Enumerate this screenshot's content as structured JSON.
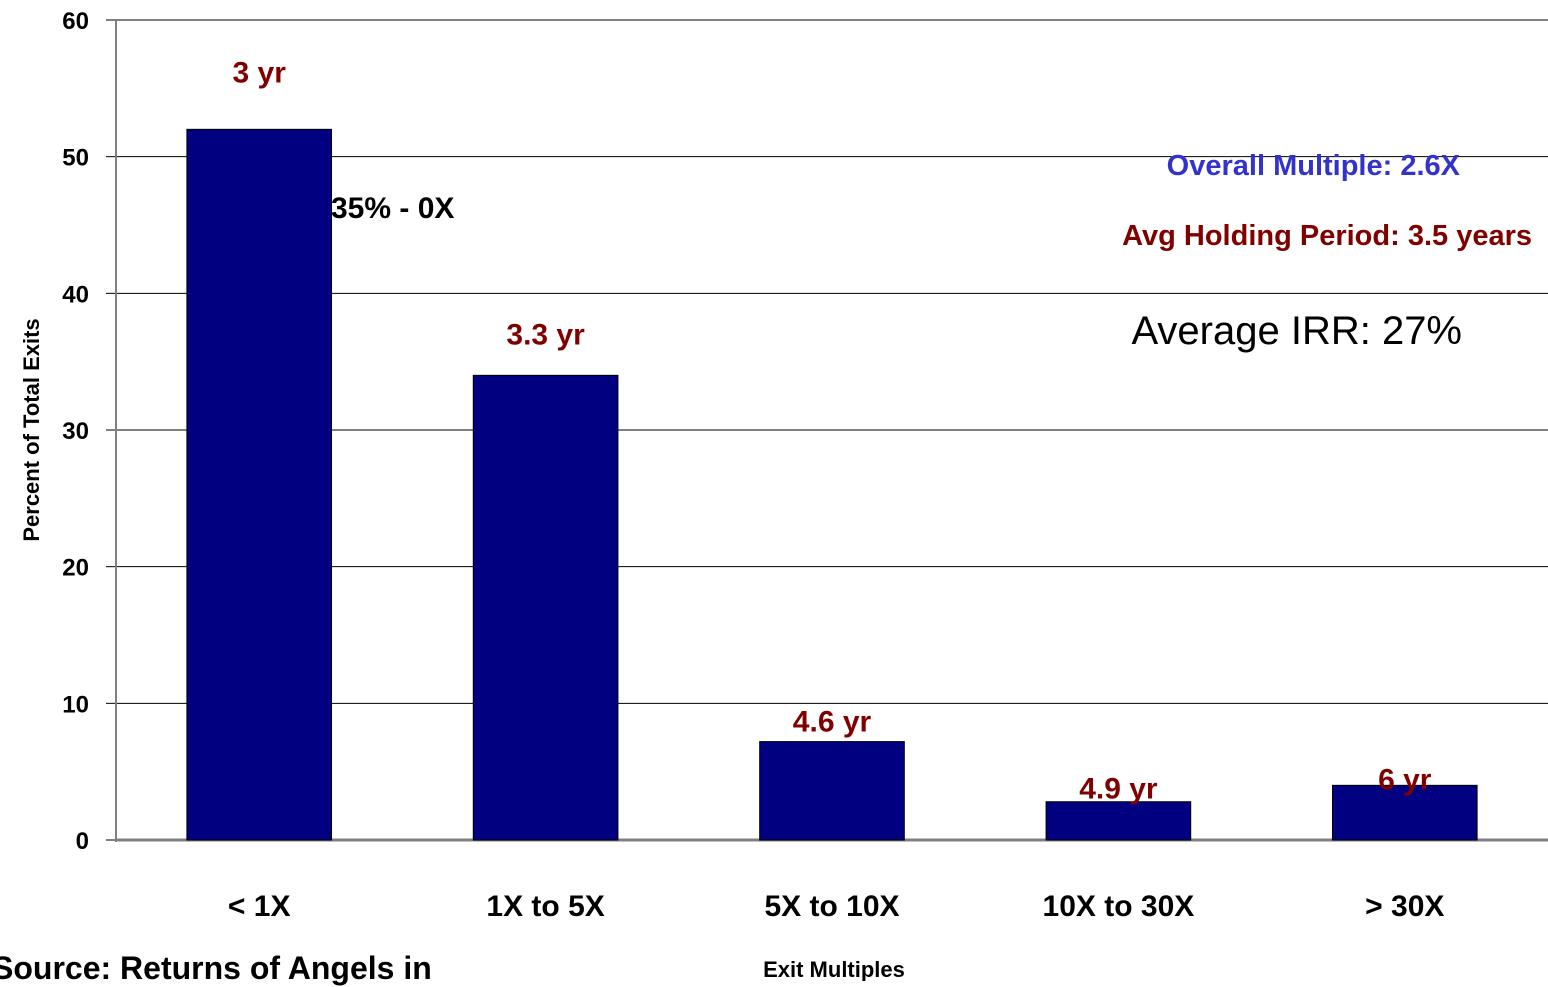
{
  "chart_data": {
    "type": "bar",
    "categories": [
      "< 1X",
      "1X to 5X",
      "5X to 10X",
      "10X to 30X",
      "> 30X"
    ],
    "values": [
      52,
      34,
      7.2,
      2.8,
      4
    ],
    "bar_labels": [
      "3 yr",
      "3.3 yr",
      "4.6 yr",
      "4.9 yr",
      "6 yr"
    ],
    "bar_color": "#000080",
    "label_color": "#800000",
    "xlabel": "Exit Multiples",
    "ylabel": "Percent of Total Exits",
    "ylim": [
      0,
      60
    ],
    "yticks": [
      0,
      10,
      20,
      30,
      40,
      50,
      60
    ],
    "grid": true,
    "legend": false,
    "annotations": {
      "first_bar_note": "35% - 0X",
      "overall_multiple": "Overall Multiple:  2.6X",
      "overall_multiple_color": "#3333cc",
      "holding_period": "Avg Holding Period: 3.5 years",
      "holding_period_color": "#800000",
      "average_irr": "Average IRR:  27%"
    }
  },
  "footer": {
    "source": "Source:  Returns of Angels in"
  }
}
